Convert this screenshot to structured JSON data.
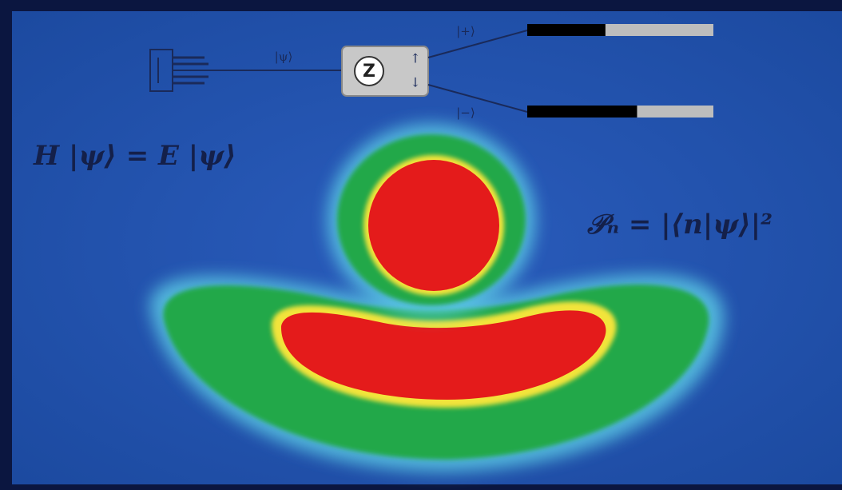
{
  "apparatus": {
    "input_state": "|ψ⟩",
    "magnet_label": "Z",
    "detectors": [
      {
        "label": "|+⟩",
        "fraction": 0.42
      },
      {
        "label": "|−⟩",
        "fraction": 0.59
      }
    ]
  },
  "equations": {
    "schrodinger": "H |ψ⟩ = E |ψ⟩",
    "born_rule": "𝒫ₙ = |⟨n|ψ⟩|²"
  }
}
